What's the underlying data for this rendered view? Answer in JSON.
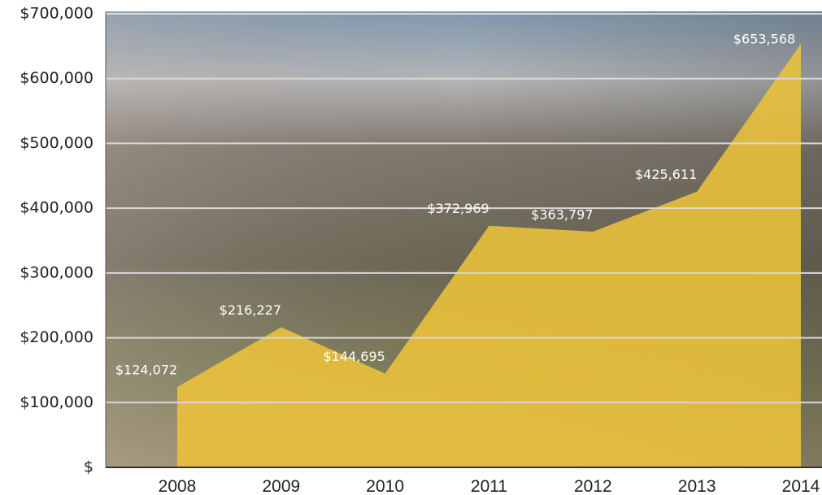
{
  "chart_data": {
    "type": "area",
    "categories": [
      "2008",
      "2009",
      "2010",
      "2011",
      "2012",
      "2013",
      "2014"
    ],
    "values": [
      124072,
      216227,
      144695,
      372969,
      363797,
      425611,
      653568
    ],
    "value_labels": [
      "$124,072",
      "$216,227",
      "$144,695",
      "$372,969",
      "$363,797",
      "$425,611",
      "$653,568"
    ],
    "color": "#ecc33a",
    "ylim": [
      0,
      700000
    ],
    "yticks": [
      {
        "value": 0,
        "label": "$"
      },
      {
        "value": 100000,
        "label": "$100,000"
      },
      {
        "value": 200000,
        "label": "$200,000"
      },
      {
        "value": 300000,
        "label": "$300,000"
      },
      {
        "value": 400000,
        "label": "$400,000"
      },
      {
        "value": 500000,
        "label": "$500,000"
      },
      {
        "value": 600000,
        "label": "$600,000"
      },
      {
        "value": 700000,
        "label": "$700,000"
      }
    ],
    "grid": true
  }
}
